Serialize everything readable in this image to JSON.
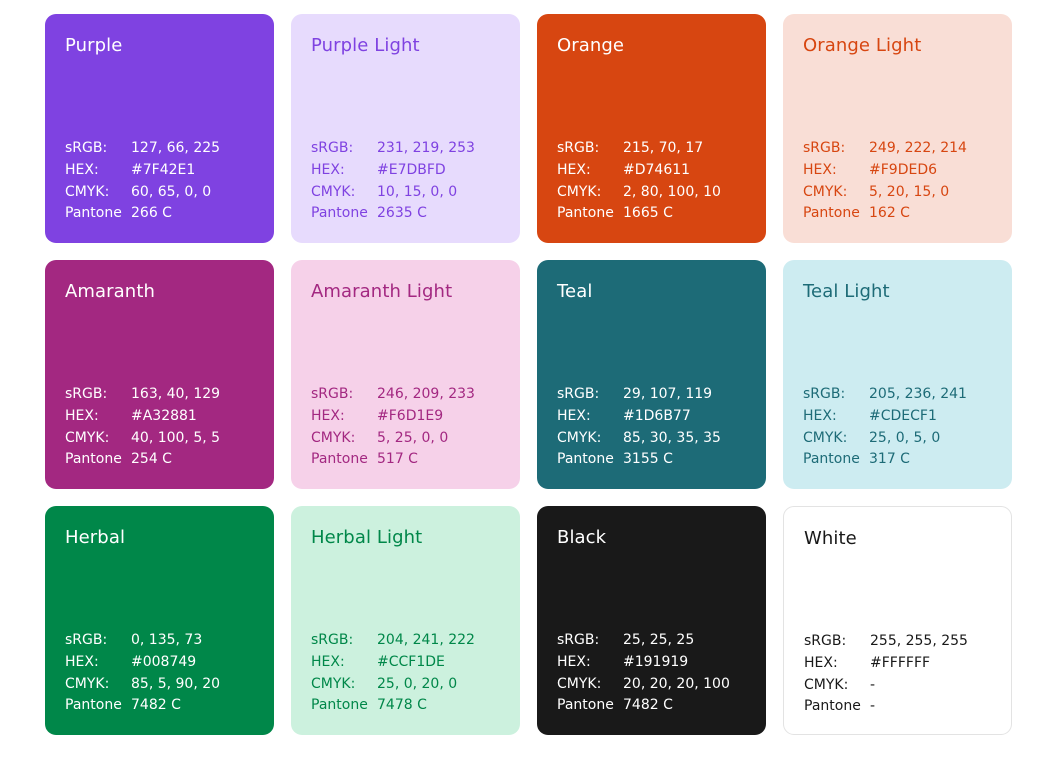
{
  "labels": {
    "srgb": "sRGB:",
    "hex": "HEX:",
    "cmyk": "CMYK:",
    "pantone": "Pantone"
  },
  "swatches": [
    {
      "name": "Purple",
      "bg": "#7F42E1",
      "fg": "#FFFFFF",
      "srgb": "127, 66, 225",
      "hex": "#7F42E1",
      "cmyk": "60, 65, 0, 0",
      "pantone": "266 C"
    },
    {
      "name": "Purple Light",
      "bg": "#E7DBFD",
      "fg": "#7F42E1",
      "srgb": "231, 219, 253",
      "hex": "#E7DBFD",
      "cmyk": "10, 15, 0, 0",
      "pantone": "2635 C"
    },
    {
      "name": "Orange",
      "bg": "#D74611",
      "fg": "#FFFFFF",
      "srgb": "215, 70, 17",
      "hex": "#D74611",
      "cmyk": "2, 80, 100, 10",
      "pantone": "1665 C"
    },
    {
      "name": "Orange Light",
      "bg": "#F9DED6",
      "fg": "#D74611",
      "srgb": "249, 222, 214",
      "hex": "#F9DED6",
      "cmyk": "5, 20, 15, 0",
      "pantone": "162 C"
    },
    {
      "name": "Amaranth",
      "bg": "#A32881",
      "fg": "#FFFFFF",
      "srgb": "163, 40, 129",
      "hex": "#A32881",
      "cmyk": "40, 100, 5, 5",
      "pantone": "254 C"
    },
    {
      "name": "Amaranth Light",
      "bg": "#F6D1E9",
      "fg": "#A32881",
      "srgb": "246, 209, 233",
      "hex": "#F6D1E9",
      "cmyk": "5, 25, 0, 0",
      "pantone": "517 C"
    },
    {
      "name": "Teal",
      "bg": "#1D6B77",
      "fg": "#FFFFFF",
      "srgb": "29, 107, 119",
      "hex": "#1D6B77",
      "cmyk": "85, 30, 35, 35",
      "pantone": "3155 C"
    },
    {
      "name": "Teal Light",
      "bg": "#CDECF1",
      "fg": "#1D6B77",
      "srgb": "205, 236, 241",
      "hex": "#CDECF1",
      "cmyk": "25, 0, 5, 0",
      "pantone": "317 C"
    },
    {
      "name": "Herbal",
      "bg": "#008749",
      "fg": "#FFFFFF",
      "srgb": "0, 135, 73",
      "hex": "#008749",
      "cmyk": "85, 5, 90, 20",
      "pantone": "7482 C"
    },
    {
      "name": "Herbal Light",
      "bg": "#CCF1DE",
      "fg": "#008749",
      "srgb": "204, 241, 222",
      "hex": "#CCF1DE",
      "cmyk": "25, 0, 20, 0",
      "pantone": "7478 C"
    },
    {
      "name": "Black",
      "bg": "#191919",
      "fg": "#FFFFFF",
      "srgb": "25, 25, 25",
      "hex": "#191919",
      "cmyk": "20, 20, 20, 100",
      "pantone": "7482 C"
    },
    {
      "name": "White",
      "bg": "#FFFFFF",
      "fg": "#191919",
      "srgb": "255, 255, 255",
      "hex": "#FFFFFF",
      "cmyk": "-",
      "pantone": "-"
    }
  ]
}
